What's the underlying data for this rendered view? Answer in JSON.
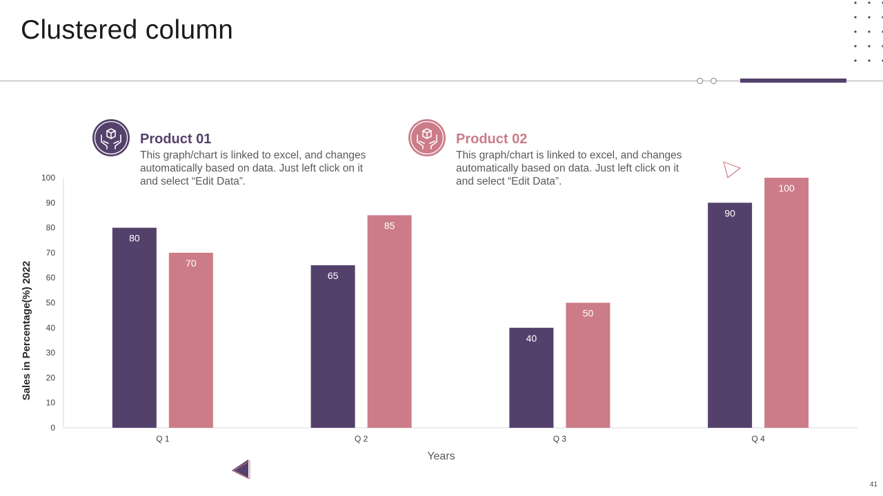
{
  "slide": {
    "title": "Clustered column",
    "page_number": "41"
  },
  "legend": [
    {
      "name": "Product 01",
      "description": "This graph/chart is linked to excel, and changes automatically based on data. Just left click on it and select “Edit Data”.",
      "color": "#54416b",
      "icon": "box-in-hands-icon"
    },
    {
      "name": "Product 02",
      "description": "This graph/chart is linked to excel, and changes automatically based on data. Just left click on it and select “Edit Data”.",
      "color": "#cc7c88",
      "icon": "box-in-hands-icon"
    }
  ],
  "colors": {
    "primary": "#54416b",
    "secondary": "#cc7c88",
    "axis": "#d9d9d9",
    "text": "#404040"
  },
  "chart_data": {
    "type": "bar",
    "categories": [
      "Q 1",
      "Q 2",
      "Q 3",
      "Q 4"
    ],
    "series": [
      {
        "name": "Product 01",
        "values": [
          80,
          65,
          40,
          90
        ],
        "color": "#54416b"
      },
      {
        "name": "Product 02",
        "values": [
          70,
          85,
          50,
          100
        ],
        "color": "#cc7c88"
      }
    ],
    "xlabel": "Years",
    "ylabel": "Sales in Percentage(%) 2022",
    "ylim": [
      0,
      100
    ],
    "yticks": [
      0,
      10,
      20,
      30,
      40,
      50,
      60,
      70,
      80,
      90,
      100
    ],
    "data_labels": true,
    "grid": false,
    "legend_position": "top"
  }
}
